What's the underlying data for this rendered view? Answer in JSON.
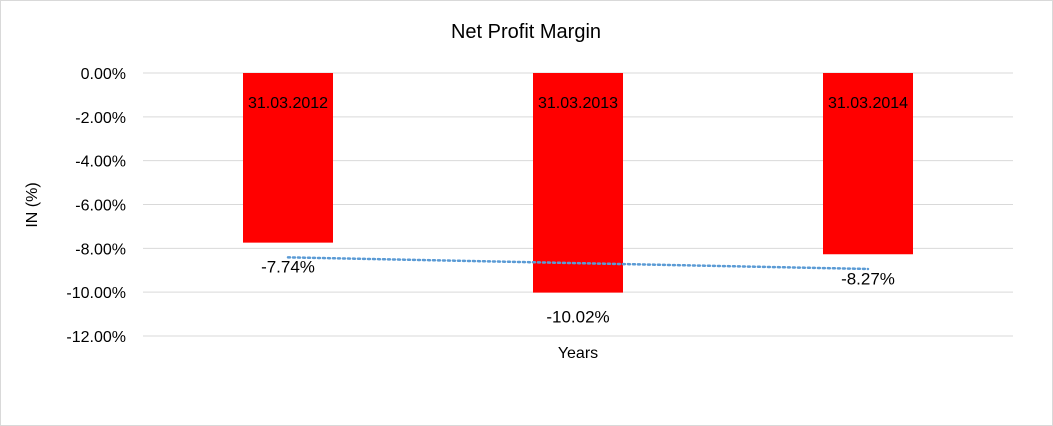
{
  "chart_data": {
    "type": "bar",
    "title": "Net Profit Margin",
    "xlabel": "Years",
    "ylabel": "IN (%)",
    "categories": [
      "31.03.2012",
      "31.03.2013",
      "31.03.2014"
    ],
    "series": [
      {
        "values": [
          -7.74,
          -10.02,
          -8.27
        ],
        "data_labels": [
          "-7.74%",
          "-10.02%",
          "-8.27%"
        ],
        "color": "#FF0000"
      }
    ],
    "trendline": {
      "type": "linear",
      "style": "dotted",
      "color": "#5B9BD5"
    },
    "ylim": [
      -12,
      0
    ],
    "yticks": [
      0,
      -2,
      -4,
      -6,
      -8,
      -10,
      -12
    ],
    "ytick_labels": [
      "0.00%",
      "-2.00%",
      "-4.00%",
      "-6.00%",
      "-8.00%",
      "-10.00%",
      "-12.00%"
    ],
    "grid": true,
    "legend": "none"
  }
}
